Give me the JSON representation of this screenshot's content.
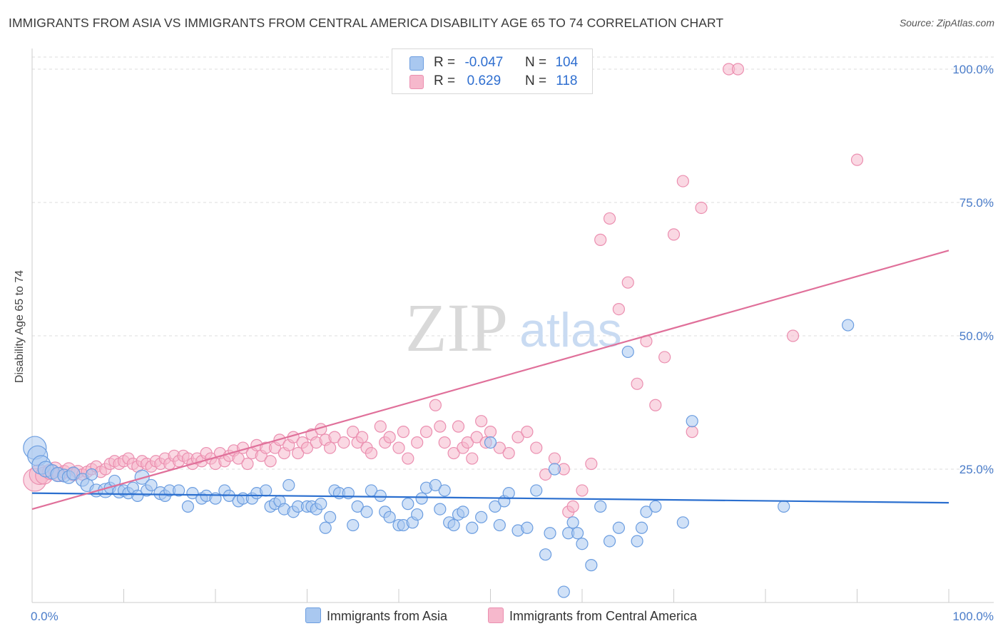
{
  "title": "IMMIGRANTS FROM ASIA VS IMMIGRANTS FROM CENTRAL AMERICA DISABILITY AGE 65 TO 74 CORRELATION CHART",
  "source": "Source: ZipAtlas.com",
  "watermark": {
    "zip": "ZIP",
    "atlas": "atlas"
  },
  "legend": {
    "rows": [
      {
        "r_label": "R =",
        "r_value": "-0.047",
        "n_label": "N =",
        "n_value": "104"
      },
      {
        "r_label": "R =",
        "r_value": "0.629",
        "n_label": "N =",
        "n_value": "118"
      }
    ]
  },
  "bottom_legend": {
    "asia": "Immigrants from Asia",
    "central_america": "Immigrants from Central America"
  },
  "colors": {
    "asia_fill": "#a9c8f0",
    "asia_stroke": "#6b9de0",
    "asia_line": "#2b6fcf",
    "ca_fill": "#f6b8cc",
    "ca_stroke": "#eb8fb0",
    "ca_line": "#e0709a",
    "tick_text": "#4a7cc9",
    "grid": "#dddddd"
  },
  "chart_data": {
    "type": "scatter",
    "title": "IMMIGRANTS FROM ASIA VS IMMIGRANTS FROM CENTRAL AMERICA DISABILITY AGE 65 TO 74 CORRELATION CHART",
    "xlabel": "",
    "ylabel": "Disability Age 65 to 74",
    "xlim": [
      0,
      100
    ],
    "ylim": [
      0,
      100
    ],
    "x_tick_labels": [
      "0.0%",
      "100.0%"
    ],
    "y_ticks": [
      25,
      50,
      75,
      100
    ],
    "y_tick_labels": [
      "25.0%",
      "50.0%",
      "75.0%",
      "100.0%"
    ],
    "grid": true,
    "legend_position": "top-center",
    "series": [
      {
        "name": "Immigrants from Asia",
        "R": -0.047,
        "N": 104,
        "trend": {
          "x": [
            0,
            100
          ],
          "y": [
            20.5,
            18.7
          ]
        },
        "points": [
          [
            0.3,
            29,
            14
          ],
          [
            0.6,
            27.5,
            12
          ],
          [
            1,
            25.8,
            11
          ],
          [
            1.5,
            25,
            9
          ],
          [
            2.2,
            24.5,
            8
          ],
          [
            2.8,
            24,
            8
          ],
          [
            3.5,
            23.8,
            7
          ],
          [
            4,
            23.5,
            7
          ],
          [
            4.5,
            24.2,
            7
          ],
          [
            5.5,
            23,
            7
          ],
          [
            6,
            22,
            7
          ],
          [
            6.5,
            24,
            6
          ],
          [
            7,
            21,
            7
          ],
          [
            8,
            21,
            8
          ],
          [
            8.5,
            21.5,
            6
          ],
          [
            9,
            22.8,
            6
          ],
          [
            9.5,
            20.8,
            7
          ],
          [
            10,
            21,
            6
          ],
          [
            10.5,
            20.5,
            6
          ],
          [
            11,
            21.5,
            6
          ],
          [
            11.5,
            20,
            6
          ],
          [
            12,
            23.5,
            8
          ],
          [
            12.5,
            21,
            6
          ],
          [
            13,
            22,
            6
          ],
          [
            14,
            20.5,
            7
          ],
          [
            14.5,
            20,
            6
          ],
          [
            15,
            21,
            6
          ],
          [
            16,
            21,
            6
          ],
          [
            17,
            18,
            6
          ],
          [
            17.5,
            20.5,
            6
          ],
          [
            18.5,
            19.5,
            6
          ],
          [
            19,
            20,
            6
          ],
          [
            20,
            19.5,
            6
          ],
          [
            21,
            21,
            6
          ],
          [
            21.5,
            20,
            6
          ],
          [
            22.5,
            19,
            6
          ],
          [
            23,
            19.5,
            6
          ],
          [
            24,
            19.5,
            6
          ],
          [
            24.5,
            20.5,
            6
          ],
          [
            25.5,
            21,
            6
          ],
          [
            26,
            18,
            6
          ],
          [
            26.5,
            18.5,
            6
          ],
          [
            27,
            19,
            6
          ],
          [
            27.5,
            17.5,
            6
          ],
          [
            28,
            22,
            6
          ],
          [
            28.5,
            17,
            6
          ],
          [
            29,
            18,
            6
          ],
          [
            30,
            18,
            6
          ],
          [
            30.5,
            18,
            6
          ],
          [
            31,
            17.5,
            6
          ],
          [
            31.5,
            18.5,
            6
          ],
          [
            32,
            14,
            6
          ],
          [
            32.5,
            16,
            6
          ],
          [
            33,
            21,
            6
          ],
          [
            33.5,
            20.5,
            6
          ],
          [
            34.5,
            20.5,
            6
          ],
          [
            35,
            14.5,
            6
          ],
          [
            35.5,
            18,
            6
          ],
          [
            36.5,
            17,
            6
          ],
          [
            37,
            21,
            6
          ],
          [
            38,
            20,
            6
          ],
          [
            38.5,
            17,
            6
          ],
          [
            39,
            16,
            6
          ],
          [
            40,
            14.5,
            6
          ],
          [
            40.5,
            14.5,
            6
          ],
          [
            41,
            18.5,
            6
          ],
          [
            41.5,
            15,
            6
          ],
          [
            42,
            16.5,
            6
          ],
          [
            42.5,
            19.5,
            6
          ],
          [
            43,
            21.5,
            6
          ],
          [
            44,
            22,
            6
          ],
          [
            44.5,
            17.5,
            6
          ],
          [
            45,
            21,
            6
          ],
          [
            45.5,
            15,
            6
          ],
          [
            46,
            14.5,
            6
          ],
          [
            46.5,
            16.5,
            6
          ],
          [
            47,
            17,
            6
          ],
          [
            48,
            14,
            6
          ],
          [
            49,
            16,
            6
          ],
          [
            50,
            30,
            6
          ],
          [
            50.5,
            18,
            6
          ],
          [
            51,
            14.5,
            6
          ],
          [
            51.5,
            19,
            6
          ],
          [
            52,
            20.5,
            6
          ],
          [
            53,
            13.5,
            6
          ],
          [
            54,
            14,
            6
          ],
          [
            55,
            21,
            6
          ],
          [
            56,
            9,
            6
          ],
          [
            56.5,
            13,
            6
          ],
          [
            57,
            25,
            6
          ],
          [
            58,
            2,
            6
          ],
          [
            58.5,
            13,
            6
          ],
          [
            59,
            15,
            6
          ],
          [
            59.5,
            13,
            6
          ],
          [
            60,
            11,
            6
          ],
          [
            61,
            7,
            6
          ],
          [
            62,
            18,
            6
          ],
          [
            63,
            11.5,
            6
          ],
          [
            64,
            14,
            6
          ],
          [
            65,
            47,
            6
          ],
          [
            66,
            11.5,
            6
          ],
          [
            66.5,
            14,
            6
          ],
          [
            67,
            17,
            6
          ],
          [
            68,
            18,
            6
          ],
          [
            71,
            15,
            6
          ],
          [
            72,
            34,
            6
          ],
          [
            82,
            18,
            6
          ],
          [
            89,
            52,
            6
          ]
        ]
      },
      {
        "name": "Immigrants from Central America",
        "R": 0.629,
        "N": 118,
        "trend": {
          "x": [
            0,
            100
          ],
          "y": [
            17.5,
            66
          ]
        },
        "points": [
          [
            0.3,
            23,
            14
          ],
          [
            0.8,
            24,
            12
          ],
          [
            1.3,
            23.8,
            10
          ],
          [
            2,
            24.5,
            9
          ],
          [
            2.5,
            25,
            8
          ],
          [
            3,
            24,
            8
          ],
          [
            3.5,
            24.5,
            7
          ],
          [
            4,
            25,
            7
          ],
          [
            4.5,
            24,
            7
          ],
          [
            5,
            24.5,
            7
          ],
          [
            5.5,
            24,
            6
          ],
          [
            6,
            24.5,
            6
          ],
          [
            6.5,
            25,
            6
          ],
          [
            7,
            25.5,
            6
          ],
          [
            7.5,
            24.5,
            6
          ],
          [
            8,
            25,
            6
          ],
          [
            8.5,
            26,
            6
          ],
          [
            9,
            26.5,
            6
          ],
          [
            9.5,
            26,
            6
          ],
          [
            10,
            26.5,
            6
          ],
          [
            10.5,
            27,
            6
          ],
          [
            11,
            26,
            6
          ],
          [
            11.5,
            25.5,
            6
          ],
          [
            12,
            26.5,
            6
          ],
          [
            12.5,
            26,
            6
          ],
          [
            13,
            25.5,
            6
          ],
          [
            13.5,
            26.5,
            6
          ],
          [
            14,
            26,
            6
          ],
          [
            14.5,
            27,
            6
          ],
          [
            15,
            26,
            6
          ],
          [
            15.5,
            27.5,
            6
          ],
          [
            16,
            26.5,
            6
          ],
          [
            16.5,
            27.5,
            6
          ],
          [
            17,
            27,
            6
          ],
          [
            17.5,
            26,
            6
          ],
          [
            18,
            27,
            6
          ],
          [
            18.5,
            26.5,
            6
          ],
          [
            19,
            28,
            6
          ],
          [
            19.5,
            27,
            6
          ],
          [
            20,
            26,
            6
          ],
          [
            20.5,
            28,
            6
          ],
          [
            21,
            26.5,
            6
          ],
          [
            21.5,
            27.5,
            6
          ],
          [
            22,
            28.5,
            6
          ],
          [
            22.5,
            27,
            6
          ],
          [
            23,
            29,
            6
          ],
          [
            23.5,
            26,
            6
          ],
          [
            24,
            28,
            6
          ],
          [
            24.5,
            29.5,
            6
          ],
          [
            25,
            27.5,
            6
          ],
          [
            25.5,
            29,
            6
          ],
          [
            26,
            26.5,
            6
          ],
          [
            26.5,
            29,
            6
          ],
          [
            27,
            30.5,
            6
          ],
          [
            27.5,
            28,
            6
          ],
          [
            28,
            29.5,
            6
          ],
          [
            28.5,
            31,
            6
          ],
          [
            29,
            28,
            6
          ],
          [
            29.5,
            30,
            6
          ],
          [
            30,
            29,
            6
          ],
          [
            30.5,
            31.5,
            6
          ],
          [
            31,
            30,
            6
          ],
          [
            31.5,
            32.5,
            6
          ],
          [
            32,
            30.5,
            6
          ],
          [
            32.5,
            29,
            6
          ],
          [
            33,
            31,
            6
          ],
          [
            34,
            30,
            6
          ],
          [
            35,
            32,
            6
          ],
          [
            35.5,
            30,
            6
          ],
          [
            36,
            31,
            6
          ],
          [
            36.5,
            29,
            6
          ],
          [
            37,
            28,
            6
          ],
          [
            38,
            33,
            6
          ],
          [
            38.5,
            30,
            6
          ],
          [
            39,
            31,
            6
          ],
          [
            40,
            29,
            6
          ],
          [
            40.5,
            32,
            6
          ],
          [
            41,
            27,
            6
          ],
          [
            42,
            30,
            6
          ],
          [
            43,
            32,
            6
          ],
          [
            44,
            37,
            6
          ],
          [
            44.5,
            33,
            6
          ],
          [
            45,
            30,
            6
          ],
          [
            46,
            28,
            6
          ],
          [
            46.5,
            33,
            6
          ],
          [
            47,
            29,
            6
          ],
          [
            47.5,
            30,
            6
          ],
          [
            48,
            27,
            6
          ],
          [
            48.5,
            31,
            6
          ],
          [
            49,
            34,
            6
          ],
          [
            49.5,
            30,
            6
          ],
          [
            50,
            32,
            6
          ],
          [
            51,
            29,
            6
          ],
          [
            52,
            28,
            6
          ],
          [
            53,
            31,
            6
          ],
          [
            54,
            32,
            6
          ],
          [
            55,
            29,
            6
          ],
          [
            56,
            24,
            6
          ],
          [
            57,
            27,
            6
          ],
          [
            58,
            25,
            6
          ],
          [
            58.5,
            17,
            6
          ],
          [
            59,
            18,
            6
          ],
          [
            60,
            21,
            6
          ],
          [
            61,
            26,
            6
          ],
          [
            62,
            68,
            6
          ],
          [
            63,
            72,
            6
          ],
          [
            64,
            55,
            6
          ],
          [
            65,
            60,
            6
          ],
          [
            66,
            41,
            6
          ],
          [
            67,
            49,
            6
          ],
          [
            68,
            37,
            6
          ],
          [
            69,
            46,
            6
          ],
          [
            70,
            69,
            6
          ],
          [
            71,
            79,
            6
          ],
          [
            72,
            32,
            6
          ],
          [
            73,
            74,
            6
          ],
          [
            76,
            100,
            6
          ],
          [
            77,
            100,
            6
          ],
          [
            83,
            50,
            6
          ],
          [
            90,
            83,
            6
          ]
        ]
      }
    ]
  }
}
